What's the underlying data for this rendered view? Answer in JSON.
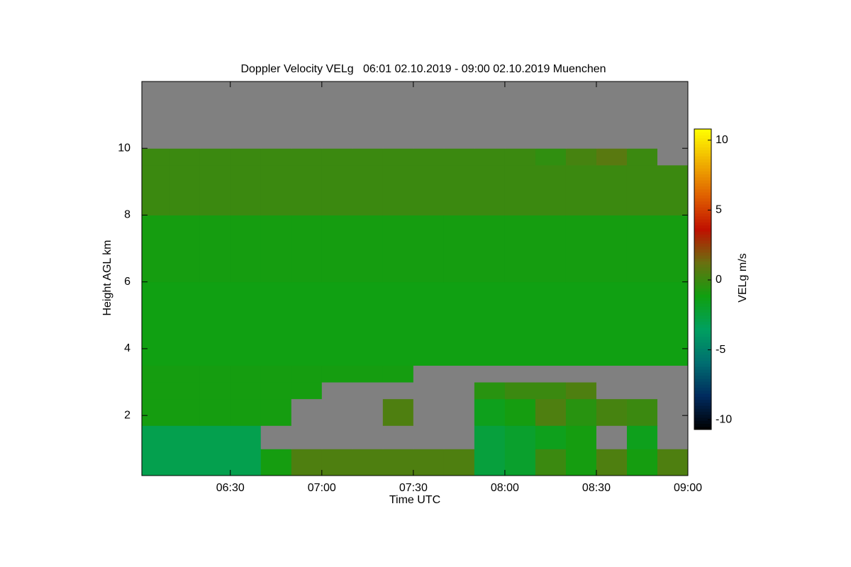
{
  "chart_data": {
    "type": "heatmap",
    "title": "Doppler Velocity VELg   06:01 02.10.2019 - 09:00 02.10.2019 Muenchen",
    "xlabel": "Time UTC",
    "ylabel": "Height AGL km",
    "colorbar_label": "VELg m/s",
    "xbins": [
      361,
      370,
      380,
      390,
      400,
      410,
      420,
      430,
      440,
      450,
      460,
      470,
      480,
      490,
      500,
      510,
      520,
      530,
      540
    ],
    "ybins": [
      0.2,
      1,
      1.7,
      2.5,
      3,
      3.5,
      4,
      6,
      8,
      9.5,
      10,
      12
    ],
    "values": [
      [
        -3,
        -3,
        -3,
        -3,
        -1,
        0.5,
        0.5,
        0.5,
        0.5,
        0.5,
        0.5,
        -2.5,
        -2,
        0,
        -1,
        0.5,
        -1,
        0.5
      ],
      [
        -3,
        -3,
        -3,
        -3,
        null,
        null,
        null,
        null,
        null,
        null,
        null,
        -2.5,
        -2,
        -1.5,
        -1,
        null,
        -1.5,
        null
      ],
      [
        -1,
        -1,
        -1,
        -1,
        -1,
        null,
        null,
        null,
        0.5,
        null,
        null,
        -1.5,
        -1,
        0.5,
        -0.5,
        0.3,
        0,
        null
      ],
      [
        -1,
        -1,
        -1,
        -1,
        -1,
        -1,
        null,
        null,
        null,
        null,
        null,
        -0.5,
        0,
        0,
        0.5,
        null,
        null,
        null
      ],
      [
        -1,
        -1,
        -1,
        -1,
        -1,
        -1,
        -1,
        -1,
        -1,
        null,
        null,
        null,
        null,
        null,
        null,
        null,
        null,
        null
      ],
      [
        -1.2,
        -1.2,
        -1.2,
        -1.2,
        -1.2,
        -1.2,
        -1.2,
        -1.2,
        -1.2,
        -1.2,
        -1.2,
        -1.2,
        -1.2,
        -1.2,
        -1.2,
        -1.2,
        -1.2,
        -1.2
      ],
      [
        -1.2,
        -1.2,
        -1.2,
        -1.2,
        -1.2,
        -1.2,
        -1.2,
        -1.2,
        -1.2,
        -1.2,
        -1.2,
        -1.2,
        -1.2,
        -1.2,
        -1.2,
        -1.2,
        -1.2,
        -1.2
      ],
      [
        -1,
        -1,
        -1,
        -1,
        -1,
        -1,
        -1,
        -1,
        -1,
        -1,
        -1,
        -1,
        -1,
        -1,
        -1,
        -1,
        -1,
        -1
      ],
      [
        0,
        0,
        0,
        0,
        0,
        0,
        0,
        0,
        0,
        0,
        0,
        0,
        0,
        0,
        0,
        0,
        0,
        0
      ],
      [
        0,
        0,
        0,
        0,
        0,
        0,
        0,
        0,
        0,
        0,
        0,
        0,
        0,
        -0.3,
        0.3,
        0.8,
        0,
        null
      ],
      [
        null,
        null,
        null,
        null,
        null,
        null,
        null,
        null,
        null,
        null,
        null,
        null,
        null,
        null,
        null,
        null,
        null,
        null
      ]
    ],
    "xlim": [
      361,
      540
    ],
    "ylim": [
      0.2,
      12
    ],
    "xticks": [
      {
        "value": 390,
        "label": "06:30"
      },
      {
        "value": 420,
        "label": "07:00"
      },
      {
        "value": 450,
        "label": "07:30"
      },
      {
        "value": 480,
        "label": "08:00"
      },
      {
        "value": 510,
        "label": "08:30"
      },
      {
        "value": 540,
        "label": "09:00"
      }
    ],
    "yticks": [
      2,
      4,
      6,
      8,
      10
    ],
    "clim": [
      -10.7,
      10.8
    ],
    "cticks": [
      -10,
      -5,
      0,
      5,
      10
    ],
    "colormap": [
      "#000000",
      "#002a5e",
      "#006e70",
      "#00a060",
      "#10a010",
      "#6a7010",
      "#c01000",
      "#e06000",
      "#f0b000",
      "#ffff00"
    ],
    "nodata_color": "#808080"
  }
}
